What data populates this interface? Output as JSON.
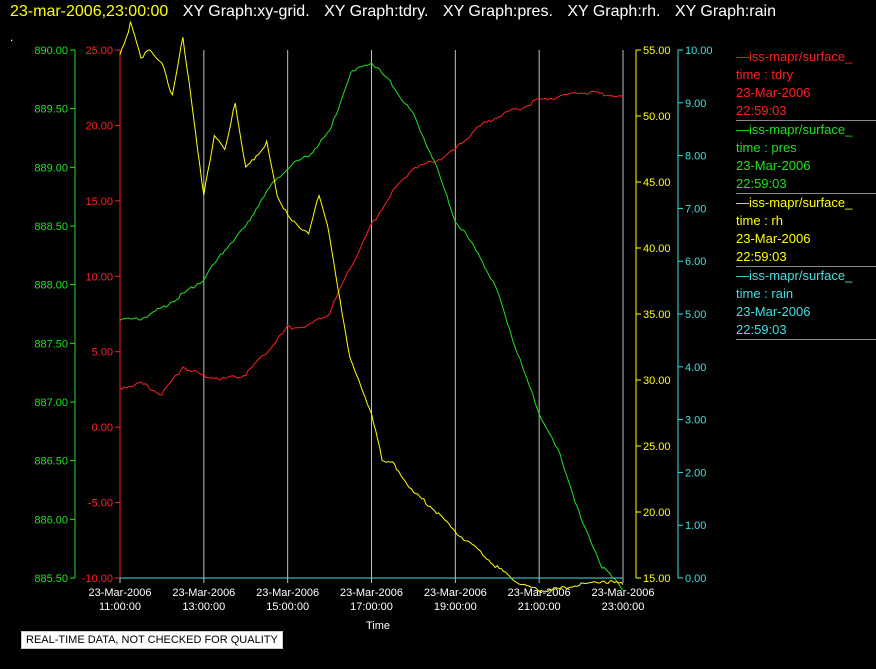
{
  "header": {
    "timestamp": "23-mar-2006,23:00:00",
    "graph_titles": [
      "XY Graph:xy-grid.",
      "XY Graph:tdry.",
      "XY Graph:pres.",
      "XY Graph:rh.",
      "XY Graph:rain"
    ]
  },
  "dot": ".",
  "notice": "REAL-TIME DATA, NOT CHECKED FOR QUALITY",
  "colors": {
    "tdry": "#ff2020",
    "pres": "#20e020",
    "rh": "#ffff00",
    "rain": "#40e0e0",
    "grid": "#c0c0c0",
    "header_timestamp": "#ffff00"
  },
  "legend": [
    {
      "name": "—iss-mapr/surface_",
      "line2": "time : tdry",
      "line3": "23-Mar-2006",
      "line4": "22:59:03",
      "color": "#ff2020"
    },
    {
      "name": "—iss-mapr/surface_",
      "line2": "time : pres",
      "line3": "23-Mar-2006",
      "line4": "22:59:03",
      "color": "#20e020"
    },
    {
      "name": "—iss-mapr/surface_",
      "line2": "time : rh",
      "line3": "23-Mar-2006",
      "line4": "22:59:03",
      "color": "#ffff00"
    },
    {
      "name": "—iss-mapr/surface_",
      "line2": "time : rain",
      "line3": "23-Mar-2006",
      "line4": "22:59:03",
      "color": "#40e0e0"
    }
  ],
  "chart_data": {
    "type": "line",
    "xlabel": "Time",
    "x_ticks": [
      {
        "date": "23-Mar-2006",
        "time": "11:00:00"
      },
      {
        "date": "23-Mar-2006",
        "time": "13:00:00"
      },
      {
        "date": "23-Mar-2006",
        "time": "15:00:00"
      },
      {
        "date": "23-Mar-2006",
        "time": "17:00:00"
      },
      {
        "date": "23-Mar-2006",
        "time": "19:00:00"
      },
      {
        "date": "23-Mar-2006",
        "time": "21:00:00"
      },
      {
        "date": "23-Mar-2006",
        "time": "23:00:00"
      }
    ],
    "xlim": [
      "23-Mar-2006 11:00:00",
      "23-Mar-2006 23:00:00"
    ],
    "grid": true,
    "axes": {
      "pres": {
        "ylim": [
          885.5,
          890.0
        ],
        "ticks": [
          "890.00",
          "889.50",
          "889.00",
          "888.50",
          "888.00",
          "887.50",
          "887.00",
          "886.50",
          "886.00",
          "885.50"
        ]
      },
      "tdry": {
        "ylim": [
          -10,
          25
        ],
        "ticks": [
          "25.00",
          "20.00",
          "15.00",
          "10.00",
          "5.00",
          "0.00",
          "-5.00",
          "-10.00"
        ]
      },
      "rh": {
        "ylim": [
          15,
          55
        ],
        "ticks": [
          "55.00",
          "50.00",
          "45.00",
          "40.00",
          "35.00",
          "30.00",
          "25.00",
          "20.00",
          "15.00"
        ]
      },
      "rain": {
        "ylim": [
          0,
          10
        ],
        "ticks": [
          "10.00",
          "9.00",
          "8.00",
          "7.00",
          "6.00",
          "5.00",
          "4.00",
          "3.00",
          "2.00",
          "1.00",
          "0.00"
        ]
      }
    },
    "series": [
      {
        "name": "tdry",
        "axis": "tdry",
        "x": [
          "11:00",
          "11:30",
          "12:00",
          "12:30",
          "13:00",
          "13:30",
          "14:00",
          "14:30",
          "15:00",
          "15:30",
          "16:00",
          "16:30",
          "17:00",
          "17:30",
          "18:00",
          "18:30",
          "19:00",
          "19:30",
          "20:00",
          "20:30",
          "21:00",
          "21:30",
          "22:00",
          "22:30",
          "23:00"
        ],
        "values": [
          2.6,
          2.9,
          2.2,
          4.0,
          3.4,
          3.2,
          3.5,
          5.0,
          6.6,
          6.7,
          7.6,
          10.6,
          13.4,
          15.6,
          17.2,
          17.6,
          18.4,
          19.8,
          20.6,
          21.1,
          21.7,
          21.9,
          22.2,
          22.1,
          21.9
        ]
      },
      {
        "name": "pres",
        "axis": "pres",
        "x": [
          "11:00",
          "11:30",
          "12:00",
          "12:30",
          "13:00",
          "13:30",
          "14:00",
          "14:30",
          "15:00",
          "15:30",
          "16:00",
          "16:30",
          "17:00",
          "17:30",
          "18:00",
          "18:30",
          "19:00",
          "19:30",
          "20:00",
          "20:30",
          "21:00",
          "21:30",
          "22:00",
          "22:30",
          "23:00"
        ],
        "values": [
          887.7,
          887.71,
          887.8,
          887.92,
          888.05,
          888.3,
          888.5,
          888.8,
          889.0,
          889.1,
          889.3,
          889.8,
          889.9,
          889.7,
          889.45,
          889.05,
          888.55,
          888.3,
          887.95,
          887.4,
          886.9,
          886.55,
          886.0,
          885.6,
          885.4
        ]
      },
      {
        "name": "rh",
        "axis": "rh",
        "x": [
          "11:00",
          "11:15",
          "11:30",
          "11:45",
          "12:00",
          "12:15",
          "12:30",
          "12:45",
          "13:00",
          "13:15",
          "13:30",
          "13:45",
          "14:00",
          "14:30",
          "14:45",
          "15:00",
          "15:30",
          "15:45",
          "16:00",
          "16:15",
          "16:30",
          "17:00",
          "17:15",
          "17:30",
          "18:00",
          "18:30",
          "19:00",
          "19:30",
          "20:00",
          "20:30",
          "21:00",
          "21:30",
          "22:00",
          "22:30",
          "23:00"
        ],
        "values": [
          54.5,
          57.0,
          54.5,
          55.0,
          54.0,
          51.5,
          56.0,
          50.0,
          44.0,
          48.5,
          47.5,
          51.0,
          46.0,
          48.0,
          44.0,
          42.5,
          41.0,
          44.0,
          41.0,
          36.0,
          31.5,
          27.5,
          24.0,
          23.8,
          21.5,
          20.2,
          18.5,
          17.2,
          15.8,
          14.7,
          14.0,
          14.2,
          14.5,
          14.8,
          14.5
        ]
      },
      {
        "name": "rain",
        "axis": "rain",
        "x": [
          "11:00",
          "23:00"
        ],
        "values": [
          0.0,
          0.0
        ]
      }
    ]
  }
}
